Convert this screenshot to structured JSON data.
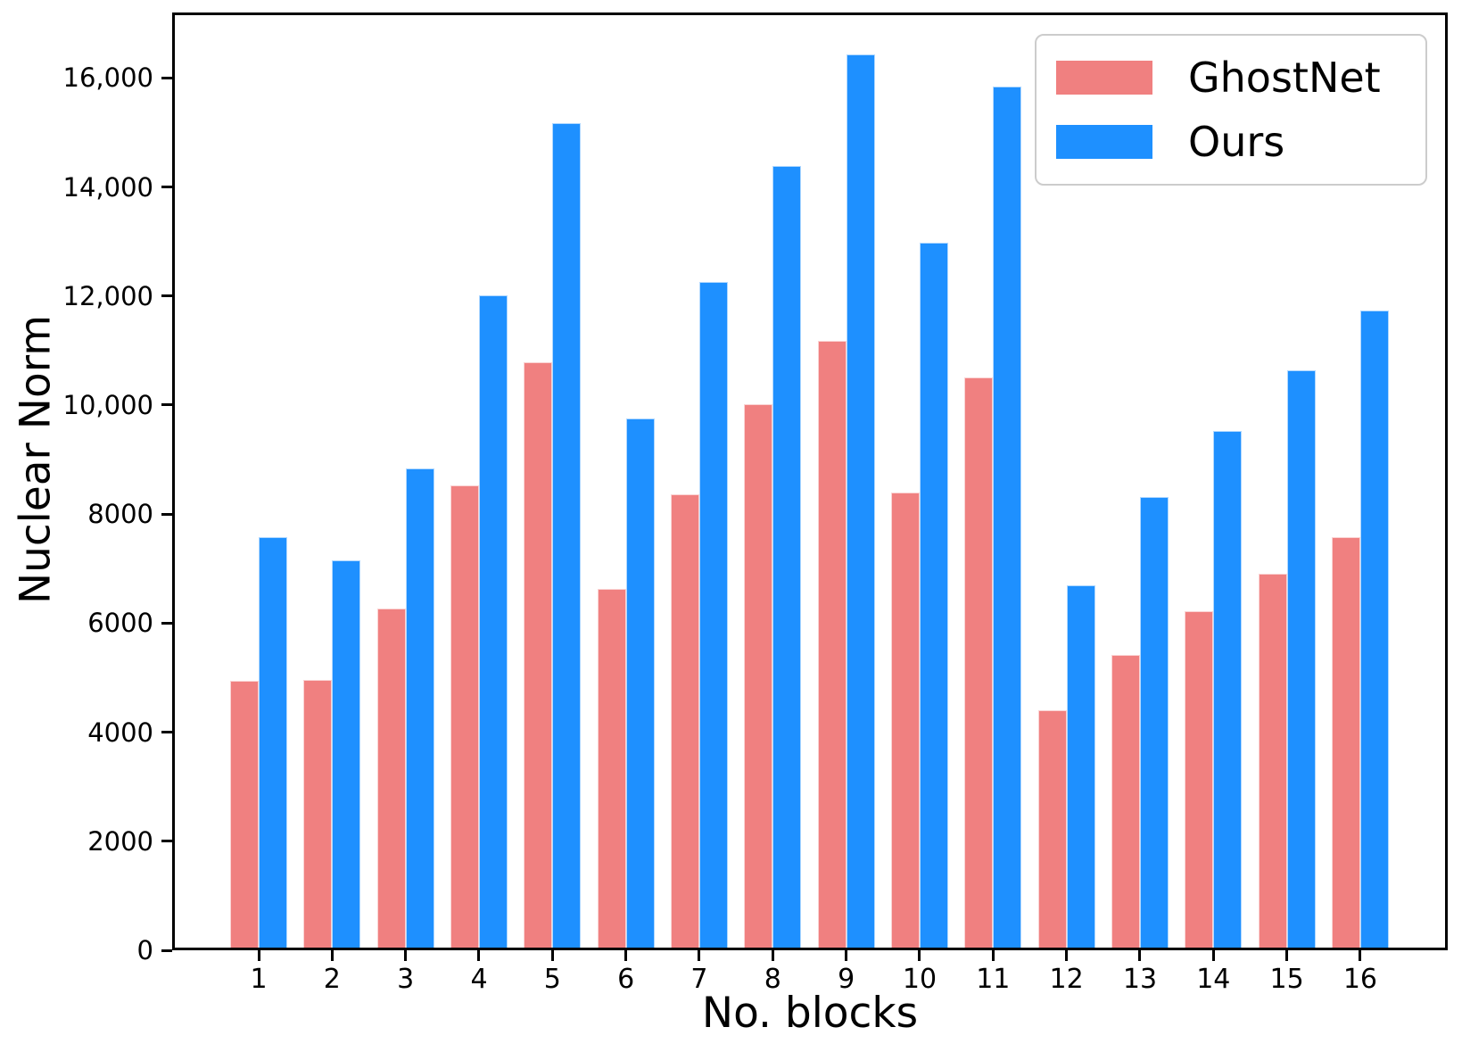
{
  "chart_data": {
    "type": "bar",
    "title": "",
    "xlabel": "No. blocks",
    "ylabel": "Nuclear Norm",
    "categories": [
      "1",
      "2",
      "3",
      "4",
      "5",
      "6",
      "7",
      "8",
      "9",
      "10",
      "11",
      "12",
      "13",
      "14",
      "15",
      "16"
    ],
    "series": [
      {
        "name": "GhostNet",
        "color": "#f08080",
        "values": [
          4950,
          4960,
          6270,
          8520,
          10790,
          6630,
          8370,
          10010,
          11170,
          8400,
          10510,
          4410,
          5420,
          6220,
          6910,
          7570
        ]
      },
      {
        "name": "Ours",
        "color": "#1e90ff",
        "values": [
          7580,
          7160,
          8840,
          12020,
          15170,
          9760,
          12250,
          14380,
          16430,
          12970,
          15850,
          6700,
          8320,
          9520,
          10630,
          11730
        ]
      }
    ],
    "ylim": [
      0,
      17200
    ],
    "yticks": [
      {
        "value": 0,
        "label": "0"
      },
      {
        "value": 2000,
        "label": "2000"
      },
      {
        "value": 4000,
        "label": "4000"
      },
      {
        "value": 6000,
        "label": "6000"
      },
      {
        "value": 8000,
        "label": "8000"
      },
      {
        "value": 10000,
        "label": "10,000"
      },
      {
        "value": 12000,
        "label": "12,000"
      },
      {
        "value": 14000,
        "label": "14,000"
      },
      {
        "value": 16000,
        "label": "16,000"
      }
    ],
    "grid": false,
    "legend_position": "upper right"
  }
}
